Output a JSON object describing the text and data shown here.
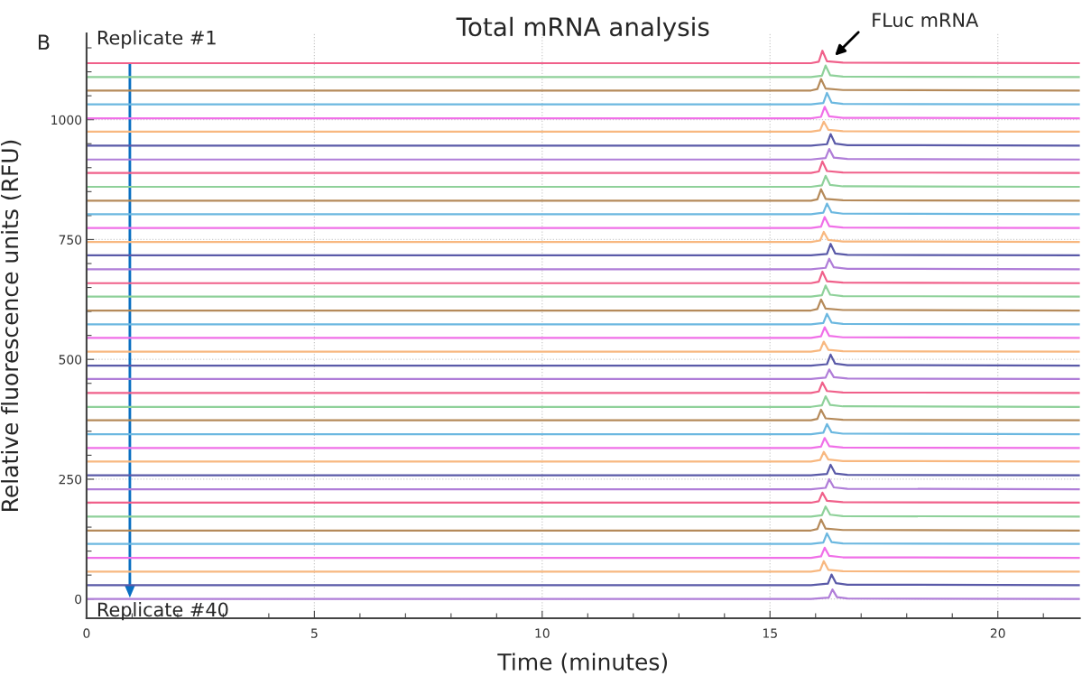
{
  "chart_data": {
    "type": "line",
    "title": "Total mRNA analysis",
    "xlabel": "Time (minutes)",
    "ylabel": "Relative fluorescence units (RFU)",
    "xlim": [
      0,
      21.8
    ],
    "ylim": [
      -40,
      1180
    ],
    "xticks": [
      0,
      {
        "value": 1,
        "label": null
      },
      {
        "value": 2,
        "label": null
      },
      {
        "value": 3,
        "label": null
      },
      {
        "value": 4,
        "label": null
      },
      5,
      {
        "value": 6,
        "label": null
      },
      {
        "value": 7,
        "label": null
      },
      {
        "value": 8,
        "label": null
      },
      {
        "value": 9,
        "label": null
      },
      10,
      {
        "value": 11,
        "label": null
      },
      {
        "value": 12,
        "label": null
      },
      {
        "value": 13,
        "label": null
      },
      {
        "value": 14,
        "label": null
      },
      15,
      {
        "value": 16,
        "label": null
      },
      {
        "value": 17,
        "label": null
      },
      {
        "value": 18,
        "label": null
      },
      {
        "value": 19,
        "label": null
      },
      20,
      {
        "value": 21,
        "label": null
      }
    ],
    "yticks": [
      0,
      {
        "value": 50,
        "label": null
      },
      {
        "value": 100,
        "label": null
      },
      {
        "value": 150,
        "label": null
      },
      {
        "value": 200,
        "label": null
      },
      250,
      {
        "value": 300,
        "label": null
      },
      {
        "value": 350,
        "label": null
      },
      {
        "value": 400,
        "label": null
      },
      {
        "value": 450,
        "label": null
      },
      500,
      {
        "value": 550,
        "label": null
      },
      {
        "value": 600,
        "label": null
      },
      {
        "value": 650,
        "label": null
      },
      {
        "value": 700,
        "label": null
      },
      750,
      {
        "value": 800,
        "label": null
      },
      {
        "value": 850,
        "label": null
      },
      {
        "value": 900,
        "label": null
      },
      {
        "value": 950,
        "label": null
      },
      1000,
      {
        "value": 1050,
        "label": null
      },
      {
        "value": 1100,
        "label": null
      },
      {
        "value": 1150,
        "label": null
      }
    ],
    "grid": true,
    "line_style": "solid",
    "marker": "none",
    "annotations": [
      "B",
      "Replicate #1",
      "Replicate #40",
      "FLuc mRNA"
    ],
    "series": [
      {
        "color": "#f0608a",
        "x": [
          0,
          15.9,
          16.07,
          16.15,
          16.25,
          16.6,
          21.8
        ],
        "values": [
          1118,
          1118,
          1121,
          1144,
          1122,
          1119,
          1118
        ]
      },
      {
        "color": "#8fd19a",
        "x": [
          0,
          15.9,
          16.14,
          16.22,
          16.32,
          16.6,
          21.8
        ],
        "values": [
          1089,
          1089,
          1092,
          1113,
          1093,
          1090,
          1089
        ]
      },
      {
        "color": "#b58a5a",
        "x": [
          0,
          15.9,
          16.04,
          16.12,
          16.22,
          16.6,
          21.8
        ],
        "values": [
          1061,
          1061,
          1064,
          1085,
          1065,
          1062,
          1061
        ]
      },
      {
        "color": "#6cb8e0",
        "x": [
          0,
          15.9,
          16.17,
          16.25,
          16.35,
          16.6,
          21.8
        ],
        "values": [
          1032,
          1032,
          1035,
          1056,
          1036,
          1033,
          1032
        ]
      },
      {
        "color": "#f070e8",
        "x": [
          0,
          15.9,
          16.12,
          16.2,
          16.3,
          16.6,
          21.8
        ],
        "values": [
          1003,
          1003,
          1006,
          1027,
          1007,
          1004,
          1003
        ]
      },
      {
        "color": "#f8b880",
        "x": [
          0,
          15.9,
          16.1,
          16.18,
          16.28,
          16.6,
          21.8
        ],
        "values": [
          975,
          975,
          978,
          996,
          979,
          976,
          975
        ]
      },
      {
        "color": "#5a5aa8",
        "x": [
          0,
          15.9,
          16.25,
          16.33,
          16.43,
          16.7,
          21.8
        ],
        "values": [
          946,
          946,
          949,
          970,
          950,
          947,
          946
        ]
      },
      {
        "color": "#b07ed8",
        "x": [
          0,
          15.9,
          16.22,
          16.3,
          16.4,
          16.7,
          21.8
        ],
        "values": [
          917,
          917,
          920,
          939,
          921,
          918,
          917
        ]
      },
      {
        "color": "#f0608a",
        "x": [
          0,
          15.9,
          16.07,
          16.15,
          16.25,
          16.6,
          21.8
        ],
        "values": [
          889,
          889,
          892,
          913,
          893,
          890,
          889
        ]
      },
      {
        "color": "#8fd19a",
        "x": [
          0,
          15.9,
          16.14,
          16.22,
          16.32,
          16.6,
          21.8
        ],
        "values": [
          860,
          860,
          863,
          883,
          864,
          861,
          860
        ]
      },
      {
        "color": "#b58a5a",
        "x": [
          0,
          15.9,
          16.04,
          16.12,
          16.22,
          16.6,
          21.8
        ],
        "values": [
          831,
          831,
          834,
          855,
          835,
          832,
          831
        ]
      },
      {
        "color": "#6cb8e0",
        "x": [
          0,
          15.9,
          16.17,
          16.25,
          16.35,
          16.6,
          21.8
        ],
        "values": [
          803,
          803,
          806,
          825,
          807,
          804,
          803
        ]
      },
      {
        "color": "#f070e8",
        "x": [
          0,
          15.9,
          16.12,
          16.2,
          16.3,
          16.6,
          21.8
        ],
        "values": [
          774,
          774,
          777,
          797,
          778,
          775,
          774
        ]
      },
      {
        "color": "#f8b880",
        "x": [
          0,
          15.9,
          16.1,
          16.18,
          16.28,
          16.6,
          21.8
        ],
        "values": [
          745,
          745,
          748,
          766,
          749,
          746,
          745
        ]
      },
      {
        "color": "#5a5aa8",
        "x": [
          0,
          15.9,
          16.25,
          16.33,
          16.43,
          16.7,
          21.8
        ],
        "values": [
          717,
          717,
          720,
          741,
          721,
          718,
          717
        ]
      },
      {
        "color": "#b07ed8",
        "x": [
          0,
          15.9,
          16.22,
          16.3,
          16.4,
          16.7,
          21.8
        ],
        "values": [
          688,
          688,
          691,
          710,
          692,
          689,
          688
        ]
      },
      {
        "color": "#f0608a",
        "x": [
          0,
          15.9,
          16.07,
          16.15,
          16.25,
          16.6,
          21.8
        ],
        "values": [
          659,
          659,
          662,
          683,
          663,
          660,
          659
        ]
      },
      {
        "color": "#8fd19a",
        "x": [
          0,
          15.9,
          16.14,
          16.22,
          16.32,
          16.6,
          21.8
        ],
        "values": [
          631,
          631,
          634,
          654,
          635,
          632,
          631
        ]
      },
      {
        "color": "#b58a5a",
        "x": [
          0,
          15.9,
          16.04,
          16.12,
          16.22,
          16.6,
          21.8
        ],
        "values": [
          602,
          602,
          605,
          625,
          606,
          603,
          602
        ]
      },
      {
        "color": "#6cb8e0",
        "x": [
          0,
          15.9,
          16.17,
          16.25,
          16.35,
          16.6,
          21.8
        ],
        "values": [
          573,
          573,
          576,
          595,
          577,
          574,
          573
        ]
      },
      {
        "color": "#f070e8",
        "x": [
          0,
          15.9,
          16.12,
          16.2,
          16.3,
          16.6,
          21.8
        ],
        "values": [
          545,
          545,
          548,
          567,
          549,
          546,
          545
        ]
      },
      {
        "color": "#f8b880",
        "x": [
          0,
          15.9,
          16.1,
          16.18,
          16.28,
          16.6,
          21.8
        ],
        "values": [
          516,
          516,
          519,
          537,
          520,
          517,
          516
        ]
      },
      {
        "color": "#5a5aa8",
        "x": [
          0,
          15.9,
          16.25,
          16.33,
          16.43,
          16.7,
          21.8
        ],
        "values": [
          487,
          487,
          490,
          510,
          491,
          488,
          487
        ]
      },
      {
        "color": "#b07ed8",
        "x": [
          0,
          15.9,
          16.22,
          16.3,
          16.4,
          16.7,
          21.8
        ],
        "values": [
          459,
          459,
          462,
          479,
          463,
          460,
          459
        ]
      },
      {
        "color": "#f0608a",
        "x": [
          0,
          15.9,
          16.07,
          16.15,
          16.25,
          16.6,
          21.8
        ],
        "values": [
          430,
          430,
          433,
          452,
          434,
          431,
          430
        ]
      },
      {
        "color": "#8fd19a",
        "x": [
          0,
          15.9,
          16.14,
          16.22,
          16.32,
          16.6,
          21.8
        ],
        "values": [
          401,
          401,
          404,
          423,
          405,
          402,
          401
        ]
      },
      {
        "color": "#b58a5a",
        "x": [
          0,
          15.9,
          16.04,
          16.12,
          16.22,
          16.6,
          21.8
        ],
        "values": [
          373,
          373,
          376,
          395,
          377,
          374,
          373
        ]
      },
      {
        "color": "#6cb8e0",
        "x": [
          0,
          15.9,
          16.17,
          16.25,
          16.35,
          16.6,
          21.8
        ],
        "values": [
          344,
          344,
          347,
          365,
          348,
          345,
          344
        ]
      },
      {
        "color": "#f070e8",
        "x": [
          0,
          15.9,
          16.12,
          16.2,
          16.3,
          16.6,
          21.8
        ],
        "values": [
          315,
          315,
          318,
          336,
          319,
          316,
          315
        ]
      },
      {
        "color": "#f8b880",
        "x": [
          0,
          15.9,
          16.1,
          16.18,
          16.28,
          16.6,
          21.8
        ],
        "values": [
          287,
          287,
          290,
          307,
          291,
          288,
          287
        ]
      },
      {
        "color": "#5a5aa8",
        "x": [
          0,
          15.9,
          16.25,
          16.33,
          16.43,
          16.7,
          21.8
        ],
        "values": [
          258,
          258,
          261,
          280,
          262,
          259,
          258
        ]
      },
      {
        "color": "#b07ed8",
        "x": [
          0,
          15.9,
          16.22,
          16.3,
          16.4,
          16.7,
          21.8
        ],
        "values": [
          229,
          229,
          232,
          250,
          233,
          230,
          229
        ]
      },
      {
        "color": "#f0608a",
        "x": [
          0,
          15.9,
          16.07,
          16.15,
          16.25,
          16.6,
          21.8
        ],
        "values": [
          201,
          201,
          204,
          222,
          205,
          202,
          201
        ]
      },
      {
        "color": "#8fd19a",
        "x": [
          0,
          15.9,
          16.14,
          16.22,
          16.32,
          16.6,
          21.8
        ],
        "values": [
          172,
          172,
          175,
          193,
          176,
          173,
          172
        ]
      },
      {
        "color": "#b58a5a",
        "x": [
          0,
          15.9,
          16.04,
          16.12,
          16.22,
          16.6,
          21.8
        ],
        "values": [
          143,
          143,
          146,
          166,
          147,
          144,
          143
        ]
      },
      {
        "color": "#6cb8e0",
        "x": [
          0,
          15.9,
          16.17,
          16.25,
          16.35,
          16.6,
          21.8
        ],
        "values": [
          115,
          115,
          118,
          137,
          119,
          116,
          115
        ]
      },
      {
        "color": "#f070e8",
        "x": [
          0,
          15.9,
          16.12,
          16.2,
          16.3,
          16.6,
          21.8
        ],
        "values": [
          86,
          86,
          89,
          107,
          90,
          87,
          86
        ]
      },
      {
        "color": "#f8b880",
        "x": [
          0,
          15.9,
          16.1,
          16.18,
          16.28,
          16.6,
          21.8
        ],
        "values": [
          57,
          57,
          60,
          79,
          61,
          58,
          57
        ]
      },
      {
        "color": "#5a5aa8",
        "x": [
          0,
          15.9,
          16.27,
          16.35,
          16.45,
          16.7,
          21.8
        ],
        "values": [
          29,
          29,
          32,
          51,
          33,
          30,
          29
        ]
      },
      {
        "color": "#b07ed8",
        "x": [
          0,
          15.9,
          16.29,
          16.37,
          16.47,
          16.7,
          21.8
        ],
        "values": [
          0,
          0,
          3,
          20,
          4,
          1,
          0
        ]
      }
    ]
  }
}
